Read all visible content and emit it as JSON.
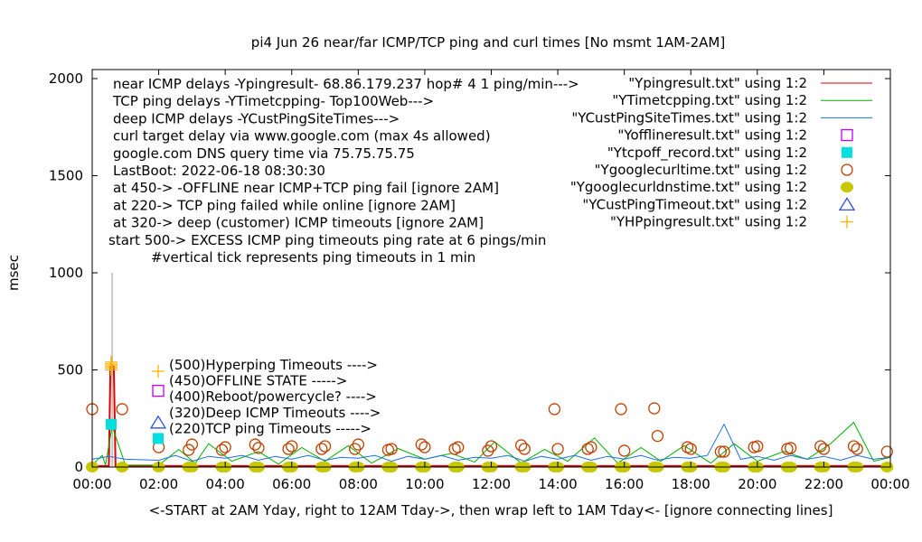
{
  "chart_data": {
    "type": "line",
    "title": "pi4 Jun 26  near/far ICMP/TCP ping and curl times [No msmt 1AM-2AM]",
    "xlabel": "<-START at 2AM Yday, right to 12AM Tday->, then wrap left to 1AM Tday<- [ignore connecting lines]",
    "ylabel": "msec",
    "xlim": [
      0,
      24
    ],
    "ylim": [
      0,
      2000
    ],
    "xticks": [
      "00:00",
      "02:00",
      "04:00",
      "06:00",
      "08:00",
      "10:00",
      "12:00",
      "14:00",
      "16:00",
      "18:00",
      "20:00",
      "22:00",
      "00:00"
    ],
    "yticks": [
      "0",
      "500",
      "1000",
      "1500",
      "2000"
    ],
    "notes": [
      "near ICMP delays -Ypingresult- 68.86.179.237 hop# 4 1 ping/min--->",
      "TCP ping delays -YTimetcpping- Top100Web--->",
      "deep ICMP delays -YCustPingSiteTimes--->",
      "curl target delay via www.google.com (max 4s allowed)",
      "google.com DNS query time via 75.75.75.75",
      "LastBoot: 2022-06-18 08:30:30",
      "at 450-> -OFFLINE near ICMP+TCP ping fail [ignore 2AM]",
      "at 220-> TCP ping failed while online [ignore 2AM]",
      "at 320-> deep (customer) ICMP timeouts [ignore 2AM]",
      "start 500-> EXCESS ICMP ping timeouts ping rate at 6 pings/min",
      "#vertical tick represents ping timeouts in 1 min"
    ],
    "markers_legend": [
      "(500)Hyperping Timeouts ---->",
      "(450)OFFLINE STATE ----->",
      "(400)Reboot/powercycle? ---->",
      "(320)Deep ICMP Timeouts ---->",
      "(220)TCP ping Timeouts ----->"
    ],
    "legend_position": "top-right",
    "series": [
      {
        "name": "\"Ypingresult.txt\" using 1:2",
        "color": "#e00000",
        "style": "line",
        "x": [
          0,
          0.5,
          0.55,
          0.6,
          0.65,
          0.7,
          24
        ],
        "y": [
          5,
          5,
          520,
          520,
          520,
          5,
          5
        ]
      },
      {
        "name": "\"YTimetcpping.txt\" using 1:2",
        "color": "#00b000",
        "style": "line",
        "x": [
          0,
          0.3,
          0.4,
          0.6,
          1,
          2,
          2.6,
          3.1,
          3.5,
          4.2,
          5,
          5.6,
          6.3,
          7,
          7.7,
          8.4,
          9.2,
          10,
          10.8,
          11.5,
          12.1,
          12.9,
          13.6,
          14.3,
          15.1,
          15.8,
          16.5,
          17.1,
          17.8,
          18.6,
          19.3,
          20,
          20.8,
          21.5,
          22.2,
          22.9,
          23.5,
          24
        ],
        "y": [
          10,
          60,
          10,
          210,
          10,
          10,
          90,
          20,
          120,
          30,
          80,
          15,
          100,
          30,
          110,
          20,
          95,
          40,
          70,
          25,
          130,
          20,
          90,
          30,
          150,
          20,
          100,
          30,
          110,
          20,
          120,
          30,
          80,
          40,
          120,
          230,
          30,
          50
        ]
      },
      {
        "name": "\"YCustPingSiteTimes.txt\" using 1:2",
        "color": "#1a6fe0",
        "style": "line",
        "x": [
          0,
          0.5,
          1,
          2,
          2.5,
          3,
          3.5,
          4,
          4.5,
          5,
          5.5,
          6,
          6.5,
          7,
          7.5,
          8,
          8.5,
          9,
          9.5,
          10,
          10.5,
          11,
          11.5,
          12,
          12.5,
          13,
          13.5,
          14,
          14.5,
          15,
          15.5,
          16,
          16.5,
          17,
          17.5,
          18,
          18.5,
          19,
          19.5,
          20,
          20.5,
          21,
          21.5,
          22,
          22.5,
          23,
          23.5,
          24
        ],
        "y": [
          40,
          55,
          40,
          35,
          60,
          30,
          55,
          45,
          60,
          35,
          55,
          40,
          60,
          35,
          50,
          45,
          60,
          30,
          55,
          40,
          60,
          35,
          50,
          45,
          60,
          30,
          55,
          40,
          60,
          35,
          55,
          40,
          60,
          35,
          50,
          45,
          60,
          220,
          40,
          55,
          35,
          60,
          40,
          55,
          35,
          60,
          40,
          50
        ]
      },
      {
        "name": "\"Yofflineresult.txt\" using 1:2",
        "color": "#c000ff",
        "style": "square",
        "x": [],
        "y": []
      },
      {
        "name": "\"Ytcpoff_record.txt\" using 1:2",
        "color": "#00e0e0",
        "style": "filled-square",
        "x": [
          0.57
        ],
        "y": [
          220
        ]
      },
      {
        "name": "\"Ygooglecurltime.txt\" using 1:2",
        "color": "#c04000",
        "style": "circle",
        "x": [
          0,
          0.9,
          2,
          2.9,
          3,
          3.9,
          4,
          4.9,
          5,
          5.9,
          6,
          6.9,
          7,
          7.9,
          8,
          8.9,
          9,
          9.9,
          10,
          10.9,
          11,
          11.9,
          12,
          12.9,
          13,
          13.9,
          14,
          14.9,
          15,
          15.9,
          16,
          16.9,
          17,
          17.9,
          18,
          18.9,
          19,
          19.9,
          20,
          20.9,
          21,
          21.9,
          22,
          22.9,
          23,
          23.9
        ],
        "y": [
          298,
          298,
          102,
          88,
          116,
          88,
          102,
          116,
          98,
          93,
          107,
          93,
          107,
          93,
          116,
          88,
          93,
          116,
          102,
          93,
          102,
          84,
          107,
          112,
          93,
          298,
          93,
          93,
          102,
          298,
          84,
          302,
          160,
          102,
          93,
          79,
          79,
          102,
          107,
          93,
          98,
          107,
          93,
          107,
          93,
          79
        ]
      },
      {
        "name": "\"Ygooglecurldnstime.txt\" using 1:2",
        "color": "#c8c800",
        "style": "filled-circle",
        "x": [
          0,
          0.9,
          2,
          2.9,
          3,
          3.9,
          4,
          4.9,
          5,
          5.9,
          6,
          6.9,
          7,
          7.9,
          8,
          8.9,
          9,
          9.9,
          10,
          10.9,
          11,
          11.9,
          12,
          12.9,
          13,
          13.9,
          14,
          14.9,
          15,
          15.9,
          16,
          16.9,
          17,
          17.9,
          18,
          18.9,
          19,
          19.9,
          20,
          20.9,
          21,
          21.9,
          22,
          22.9,
          23,
          23.9
        ],
        "y": [
          0,
          0,
          0,
          0,
          0,
          0,
          0,
          0,
          0,
          0,
          0,
          0,
          0,
          0,
          0,
          0,
          0,
          0,
          0,
          0,
          0,
          0,
          0,
          0,
          0,
          0,
          0,
          0,
          0,
          0,
          0,
          0,
          0,
          0,
          0,
          0,
          0,
          0,
          0,
          0,
          0,
          0,
          0,
          0,
          0,
          0
        ]
      },
      {
        "name": "\"YCustPingTimeout.txt\" using 1:2",
        "color": "#3050e0",
        "style": "triangle",
        "x": [],
        "y": []
      },
      {
        "name": "\"YHPpingresult.txt\" using 1:2",
        "color": "#ffb000",
        "style": "plus",
        "x": [
          0.57,
          0.57,
          0.57,
          0.57,
          0.57
        ],
        "y": [
          500,
          510,
          520,
          530,
          540
        ]
      }
    ]
  }
}
